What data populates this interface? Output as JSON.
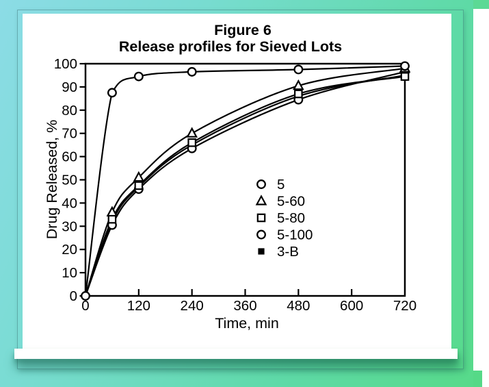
{
  "slide": {
    "colors": {
      "gradient_start": "#8cdce6",
      "gradient_mid": "#6fdcc4",
      "gradient_end": "#57da8a",
      "paper": "#ffffff",
      "ink": "#000000",
      "shadow": "rgba(15,85,65,0.55)"
    }
  },
  "chart_data": {
    "type": "line",
    "title": "Figure 6",
    "subtitle": "Release profiles for Sieved Lots",
    "xlabel": "Time, min",
    "ylabel": "Drug Released, %",
    "x": [
      0,
      60,
      120,
      240,
      480,
      720
    ],
    "xlim": [
      0,
      720
    ],
    "ylim": [
      0,
      100
    ],
    "x_ticks": [
      0,
      120,
      240,
      360,
      480,
      600,
      720
    ],
    "y_ticks": [
      0,
      10,
      20,
      30,
      40,
      50,
      60,
      70,
      80,
      90,
      100
    ],
    "grid": false,
    "legend_position": "inside-center-right",
    "series": [
      {
        "name": "5",
        "marker": "circle",
        "origin_marker": true,
        "values": [
          0,
          87.5,
          94.5,
          96.5,
          97.5,
          99
        ]
      },
      {
        "name": "5-60",
        "marker": "triangle",
        "origin_marker": false,
        "values": [
          0,
          36,
          51,
          70,
          90.5,
          98
        ]
      },
      {
        "name": "5-80",
        "marker": "square",
        "origin_marker": false,
        "values": [
          0,
          33,
          47.5,
          66,
          87,
          94.5
        ]
      },
      {
        "name": "5-100",
        "marker": "circle",
        "origin_marker": false,
        "values": [
          0,
          30.5,
          46,
          63.5,
          84.5,
          96.5
        ]
      },
      {
        "name": "3-B",
        "marker": "square-filled",
        "origin_marker": false,
        "values": [
          0,
          32,
          47,
          65,
          86,
          95
        ]
      }
    ]
  }
}
